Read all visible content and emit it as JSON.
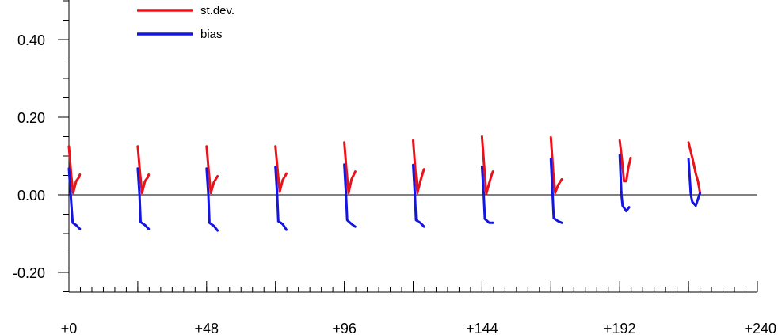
{
  "chart_data": {
    "type": "line",
    "title": "",
    "xlabel": "",
    "ylabel": "",
    "xlim": [
      0,
      240
    ],
    "ylim": [
      -0.25,
      0.5
    ],
    "x_ticks": [
      0,
      48,
      96,
      144,
      192,
      240
    ],
    "x_tick_labels": [
      "+0",
      "+48",
      "+96",
      "+144",
      "+192",
      "+240"
    ],
    "x_minor_step": 4,
    "y_ticks": [
      0.4,
      0.2,
      0.0,
      -0.2
    ],
    "y_tick_labels": [
      "0.40",
      "0.20",
      "0.00",
      "-0.20"
    ],
    "y_minor_step": 0.05,
    "zero_line": true,
    "legend_position": "top-left",
    "colors": {
      "st.dev.": "#e8131a",
      "bias": "#1515e0"
    },
    "series": [
      {
        "name": "st.dev.",
        "groups": [
          [
            [
              0,
              0.125
            ],
            [
              0.8,
              0.05
            ],
            [
              1.5,
              0.005
            ],
            [
              2.5,
              0.035
            ],
            [
              3.5,
              0.045
            ],
            [
              3.8,
              0.052
            ]
          ],
          [
            [
              24,
              0.125
            ],
            [
              24.8,
              0.055
            ],
            [
              25.5,
              0.005
            ],
            [
              26.5,
              0.035
            ],
            [
              27.5,
              0.045
            ],
            [
              27.8,
              0.052
            ]
          ],
          [
            [
              48,
              0.125
            ],
            [
              48.8,
              0.055
            ],
            [
              49.5,
              0.005
            ],
            [
              50.5,
              0.032
            ],
            [
              51.5,
              0.044
            ],
            [
              51.8,
              0.048
            ]
          ],
          [
            [
              72,
              0.125
            ],
            [
              72.8,
              0.06
            ],
            [
              73.5,
              0.008
            ],
            [
              74.5,
              0.038
            ],
            [
              75.5,
              0.05
            ],
            [
              75.8,
              0.055
            ]
          ],
          [
            [
              96,
              0.135
            ],
            [
              96.8,
              0.06
            ],
            [
              97.5,
              0.005
            ],
            [
              98.5,
              0.04
            ],
            [
              99.5,
              0.055
            ],
            [
              99.8,
              0.06
            ]
          ],
          [
            [
              120,
              0.14
            ],
            [
              120.8,
              0.06
            ],
            [
              121.5,
              0.005
            ],
            [
              122.5,
              0.035
            ],
            [
              123.5,
              0.06
            ],
            [
              123.8,
              0.066
            ]
          ],
          [
            [
              144,
              0.15
            ],
            [
              144.8,
              0.07
            ],
            [
              145.5,
              0.002
            ],
            [
              146.5,
              0.03
            ],
            [
              147.5,
              0.055
            ],
            [
              147.8,
              0.06
            ]
          ],
          [
            [
              168,
              0.148
            ],
            [
              168.8,
              0.06
            ],
            [
              169.5,
              0.005
            ],
            [
              170.5,
              0.025
            ],
            [
              171.5,
              0.037
            ],
            [
              171.8,
              0.04
            ]
          ],
          [
            [
              192,
              0.14
            ],
            [
              192.8,
              0.09
            ],
            [
              193.5,
              0.035
            ],
            [
              194.3,
              0.035
            ],
            [
              195,
              0.07
            ],
            [
              195.8,
              0.095
            ]
          ],
          [
            [
              216,
              0.135
            ],
            [
              217.5,
              0.09
            ],
            [
              218.5,
              0.055
            ],
            [
              219.3,
              0.035
            ],
            [
              220,
              0.005
            ]
          ]
        ]
      },
      {
        "name": "bias",
        "groups": [
          [
            [
              0,
              0.068
            ],
            [
              0.8,
              -0.02
            ],
            [
              1.3,
              -0.072
            ],
            [
              2.5,
              -0.078
            ],
            [
              3.8,
              -0.088
            ]
          ],
          [
            [
              24,
              0.068
            ],
            [
              24.6,
              0.0
            ],
            [
              25,
              -0.07
            ],
            [
              26.5,
              -0.078
            ],
            [
              27.8,
              -0.088
            ]
          ],
          [
            [
              48,
              0.068
            ],
            [
              48.6,
              0.0
            ],
            [
              49,
              -0.072
            ],
            [
              50.5,
              -0.08
            ],
            [
              51.8,
              -0.092
            ]
          ],
          [
            [
              72,
              0.072
            ],
            [
              72.6,
              0.0
            ],
            [
              73,
              -0.068
            ],
            [
              74.5,
              -0.075
            ],
            [
              75.8,
              -0.09
            ]
          ],
          [
            [
              96,
              0.078
            ],
            [
              96.6,
              0.0
            ],
            [
              97,
              -0.065
            ],
            [
              98.5,
              -0.075
            ],
            [
              99.8,
              -0.082
            ]
          ],
          [
            [
              120,
              0.077
            ],
            [
              120.6,
              0.0
            ],
            [
              121,
              -0.065
            ],
            [
              122.5,
              -0.072
            ],
            [
              123.8,
              -0.082
            ]
          ],
          [
            [
              144,
              0.073
            ],
            [
              144.6,
              0.0
            ],
            [
              145,
              -0.062
            ],
            [
              146.5,
              -0.072
            ],
            [
              147.8,
              -0.072
            ]
          ],
          [
            [
              168,
              0.092
            ],
            [
              168.6,
              0.0
            ],
            [
              169,
              -0.06
            ],
            [
              170.5,
              -0.068
            ],
            [
              171.8,
              -0.072
            ]
          ],
          [
            [
              192,
              0.102
            ],
            [
              192.6,
              0.0
            ],
            [
              193,
              -0.028
            ],
            [
              194.3,
              -0.042
            ],
            [
              195.3,
              -0.032
            ]
          ],
          [
            [
              216,
              0.092
            ],
            [
              216.8,
              0.0
            ],
            [
              217.3,
              -0.018
            ],
            [
              218.5,
              -0.028
            ],
            [
              220,
              0.005
            ]
          ]
        ]
      }
    ]
  }
}
